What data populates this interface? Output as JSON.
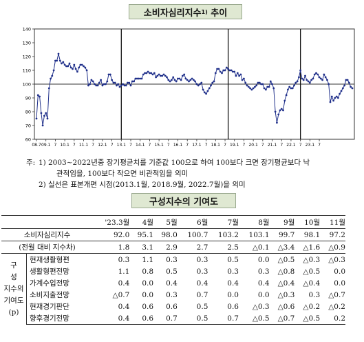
{
  "title": {
    "main": "소비자심리지수",
    "sup": "1)",
    "suffix": "추이"
  },
  "chart_data": {
    "type": "line",
    "ylim": [
      60,
      140
    ],
    "y_ticks": [
      "60",
      "70",
      "80",
      "90",
      "100",
      "110",
      "120",
      "130",
      "140"
    ],
    "x_tick_labels": [
      "08.7",
      "09.1",
      "7",
      "10.1",
      "7",
      "11.1",
      "7",
      "12.1",
      "7",
      "13.1",
      "7",
      "14.1",
      "7",
      "15.1",
      "7",
      "16.1",
      "7",
      "17.1",
      "7",
      "18.1",
      "7",
      "19.1",
      "7",
      "20.1",
      "7",
      "21.1",
      "7",
      "22.1",
      "7",
      "23.1",
      "7"
    ],
    "x_start_month": "2008.7",
    "baseline": 100,
    "vertical_markers": [
      "2013.1",
      "2018.9",
      "2022.7"
    ],
    "values": [
      75,
      92,
      91,
      79,
      70,
      77,
      79,
      75,
      97,
      104,
      106,
      110,
      117,
      117,
      122,
      117,
      115,
      116,
      114,
      113,
      113,
      115,
      112,
      111,
      114,
      111,
      109,
      112,
      114,
      114,
      113,
      112,
      110,
      99,
      100,
      103,
      102,
      100,
      99,
      99,
      101,
      103,
      99,
      100,
      100,
      102,
      107,
      107,
      103,
      101,
      101,
      99,
      100,
      98,
      99,
      100,
      99,
      99,
      101,
      101,
      99,
      102,
      102,
      104,
      104,
      104,
      104,
      104,
      107,
      108,
      108,
      109,
      108,
      108,
      107,
      108,
      105,
      106,
      107,
      106,
      106,
      107,
      106,
      105,
      103,
      102,
      103,
      105,
      103,
      102,
      104,
      104,
      103,
      106,
      107,
      104,
      103,
      102,
      103,
      104,
      103,
      102,
      100,
      99,
      100,
      101,
      96,
      94,
      93,
      95,
      97,
      99,
      101,
      102,
      108,
      111,
      111,
      109,
      108,
      110,
      110,
      112,
      111,
      110,
      110,
      109,
      109,
      106,
      108,
      106,
      107,
      103,
      104,
      101,
      99,
      98,
      97,
      96,
      97,
      98,
      99,
      101,
      101,
      100,
      100,
      97,
      96,
      98,
      98,
      102,
      100,
      97,
      80,
      72,
      78,
      81,
      82,
      81,
      88,
      92,
      96,
      98,
      97,
      97,
      99,
      101,
      102,
      105,
      110,
      104,
      103,
      106,
      103,
      102,
      101,
      103,
      104,
      107,
      108,
      107,
      105,
      104,
      103,
      107,
      105,
      103,
      100,
      87,
      91,
      88,
      90,
      91,
      90,
      93,
      95,
      97,
      99,
      103,
      103,
      101,
      98,
      97
    ]
  },
  "notes": {
    "prefix": "주:",
    "n1_num": "1)",
    "n1_line1": "2003∼2022년중 장기평균치를 기준값 100으로 하여 100보다 크면 장기평균보다 낙",
    "n1_line2": "관적임을, 100보다 작으면 비관적임을 의미",
    "n2_num": "2)",
    "n2_line1": "실선은 표본개편 시점(2013.1월, 2018.9월, 2022.7월)을 의미"
  },
  "table": {
    "title": "구성지수의 기여도",
    "columns": [
      "'23.3월",
      "4월",
      "5월",
      "6월",
      "7월",
      "8월",
      "9월",
      "10월",
      "11월"
    ],
    "csi_label": "소비자심리지수",
    "csi_values": [
      "92.0",
      "95.1",
      "98.0",
      "100.7",
      "103.2",
      "103.1",
      "99.7",
      "98.1",
      "97.2"
    ],
    "change_label": "(전월 대비 지수차)",
    "change_values": [
      "1.8",
      "3.1",
      "2.9",
      "2.7",
      "2.5",
      "△0.1",
      "△3.4",
      "△1.6",
      "△0.9"
    ],
    "side_lines": [
      "구",
      "성",
      "지수의",
      "기여도",
      "(p)"
    ],
    "rows": [
      {
        "label": "현재생활형편",
        "values": [
          "0.3",
          "1.1",
          "0.3",
          "0.3",
          "0.5",
          "0.0",
          "△0.5",
          "△0.3",
          "△0.3"
        ]
      },
      {
        "label": "생활형편전망",
        "values": [
          "1.1",
          "0.8",
          "0.5",
          "0.3",
          "0.3",
          "0.3",
          "△0.8",
          "△0.5",
          "0.0"
        ]
      },
      {
        "label": "가계수입전망",
        "values": [
          "0.4",
          "0.0",
          "0.4",
          "0.4",
          "0.4",
          "0.4",
          "△0.4",
          "△0.4",
          "0.0"
        ]
      },
      {
        "label": "소비지출전망",
        "values": [
          "△0.7",
          "0.0",
          "0.3",
          "0.7",
          "0.0",
          "0.0",
          "△0.3",
          "0.3",
          "△0.7"
        ]
      },
      {
        "label": "현재경기판단",
        "values": [
          "0.4",
          "0.6",
          "0.6",
          "0.5",
          "0.6",
          "△0.3",
          "△0.6",
          "△0.2",
          "△0.2"
        ]
      },
      {
        "label": "향후경기전망",
        "values": [
          "0.4",
          "0.6",
          "0.7",
          "0.5",
          "0.7",
          "△0.5",
          "△0.7",
          "△0.5",
          "0.2"
        ]
      }
    ]
  }
}
